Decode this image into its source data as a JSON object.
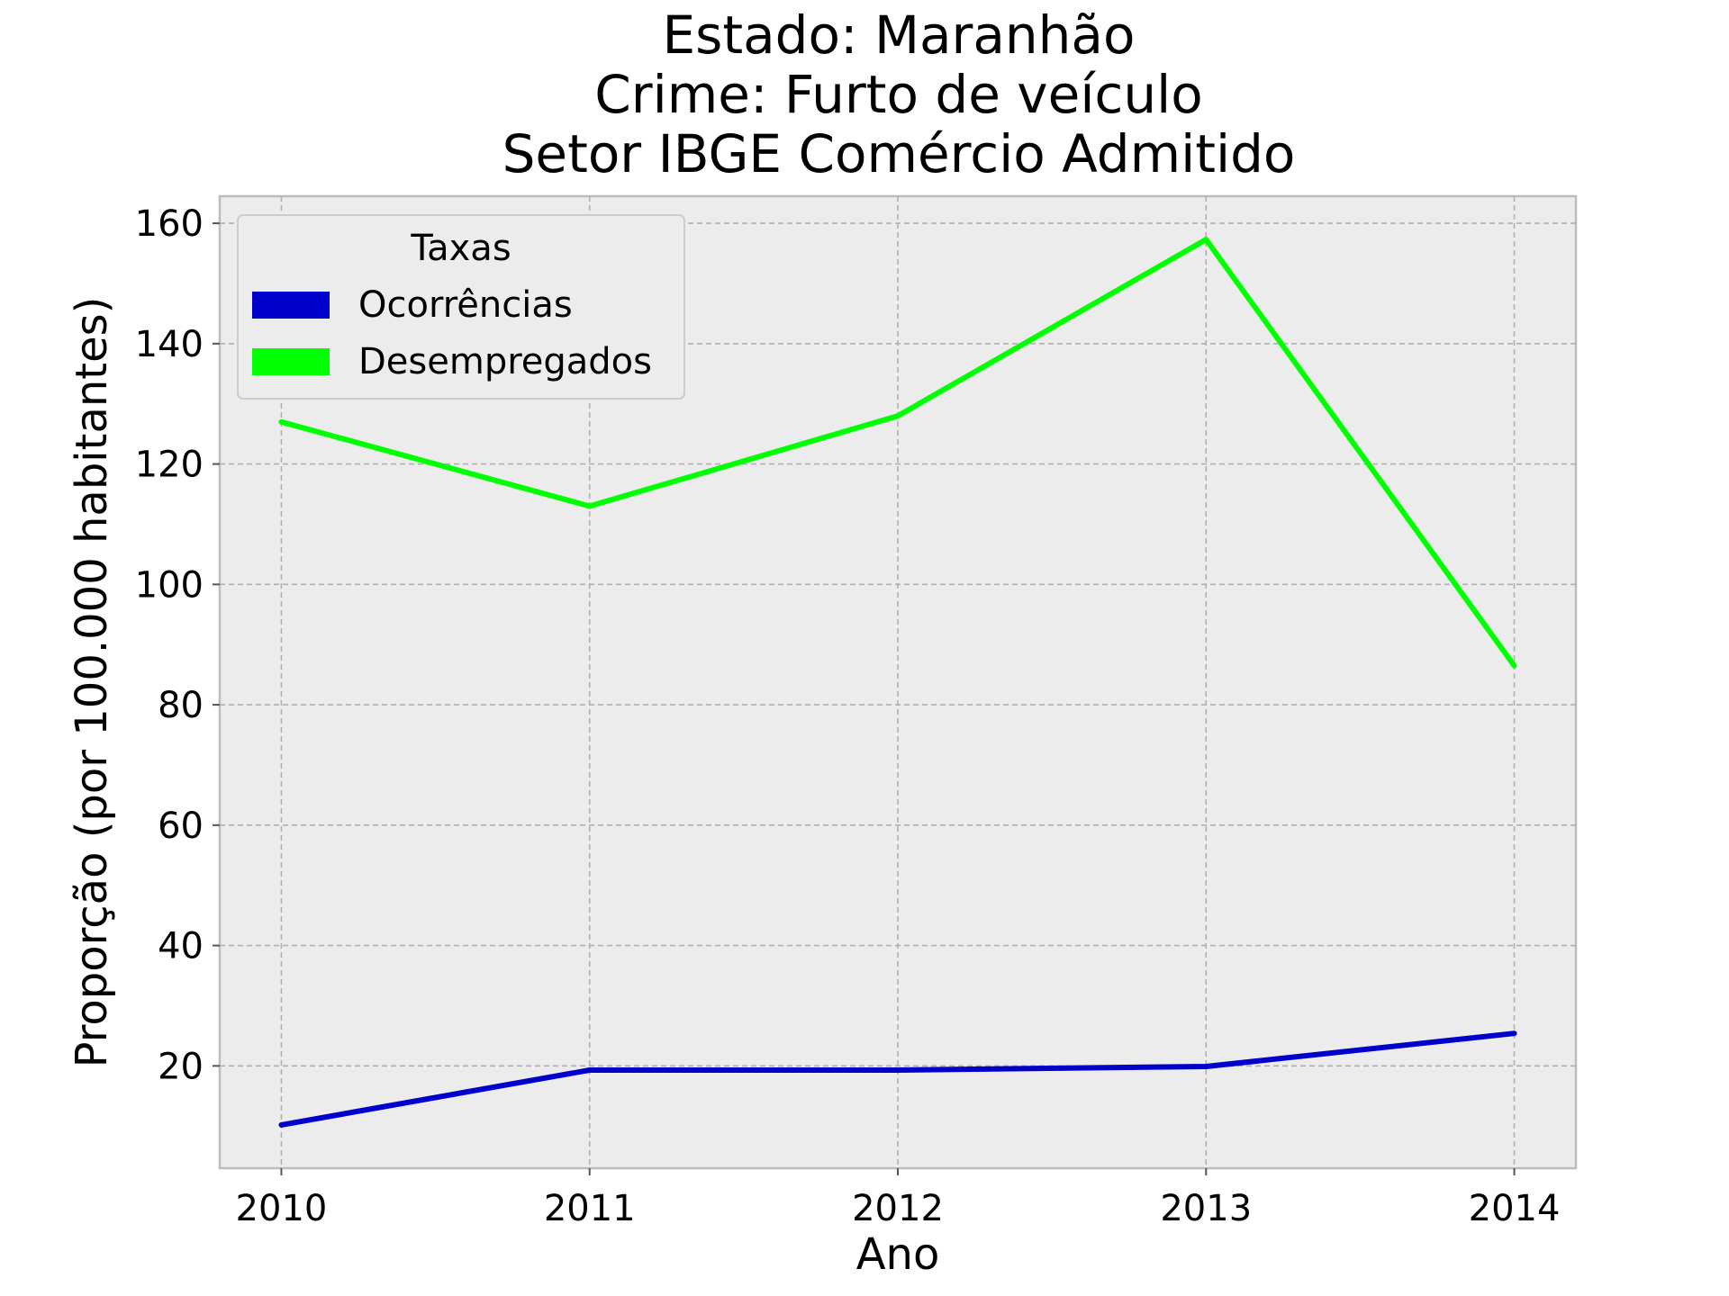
{
  "chart_data": {
    "type": "line",
    "title": [
      "Estado: Maranhão",
      "Crime: Furto de veículo",
      "Setor IBGE  Comércio   Admitido"
    ],
    "xlabel": "Ano",
    "ylabel": "Proporção (por 100.000 habitantes)",
    "x": [
      2010,
      2011,
      2012,
      2013,
      2014
    ],
    "x_tick_labels": [
      "2010",
      "2011",
      "2012",
      "2013",
      "2014"
    ],
    "y_ticks": [
      20,
      40,
      60,
      80,
      100,
      120,
      140,
      160
    ],
    "y_tick_labels": [
      "20",
      "40",
      "60",
      "80",
      "100",
      "120",
      "140",
      "160"
    ],
    "xlim": [
      2009.8,
      2014.2
    ],
    "ylim": [
      3,
      164.5
    ],
    "grid": true,
    "legend": {
      "title": "Taxas",
      "position": "top-left"
    },
    "series": [
      {
        "name": "Ocorrências",
        "color": "#0000cc",
        "values": [
          10.2,
          19.3,
          19.3,
          19.9,
          25.4
        ]
      },
      {
        "name": "Desempregados",
        "color": "#00ff00",
        "values": [
          127.0,
          113.0,
          128.0,
          157.3,
          86.5
        ]
      }
    ]
  }
}
